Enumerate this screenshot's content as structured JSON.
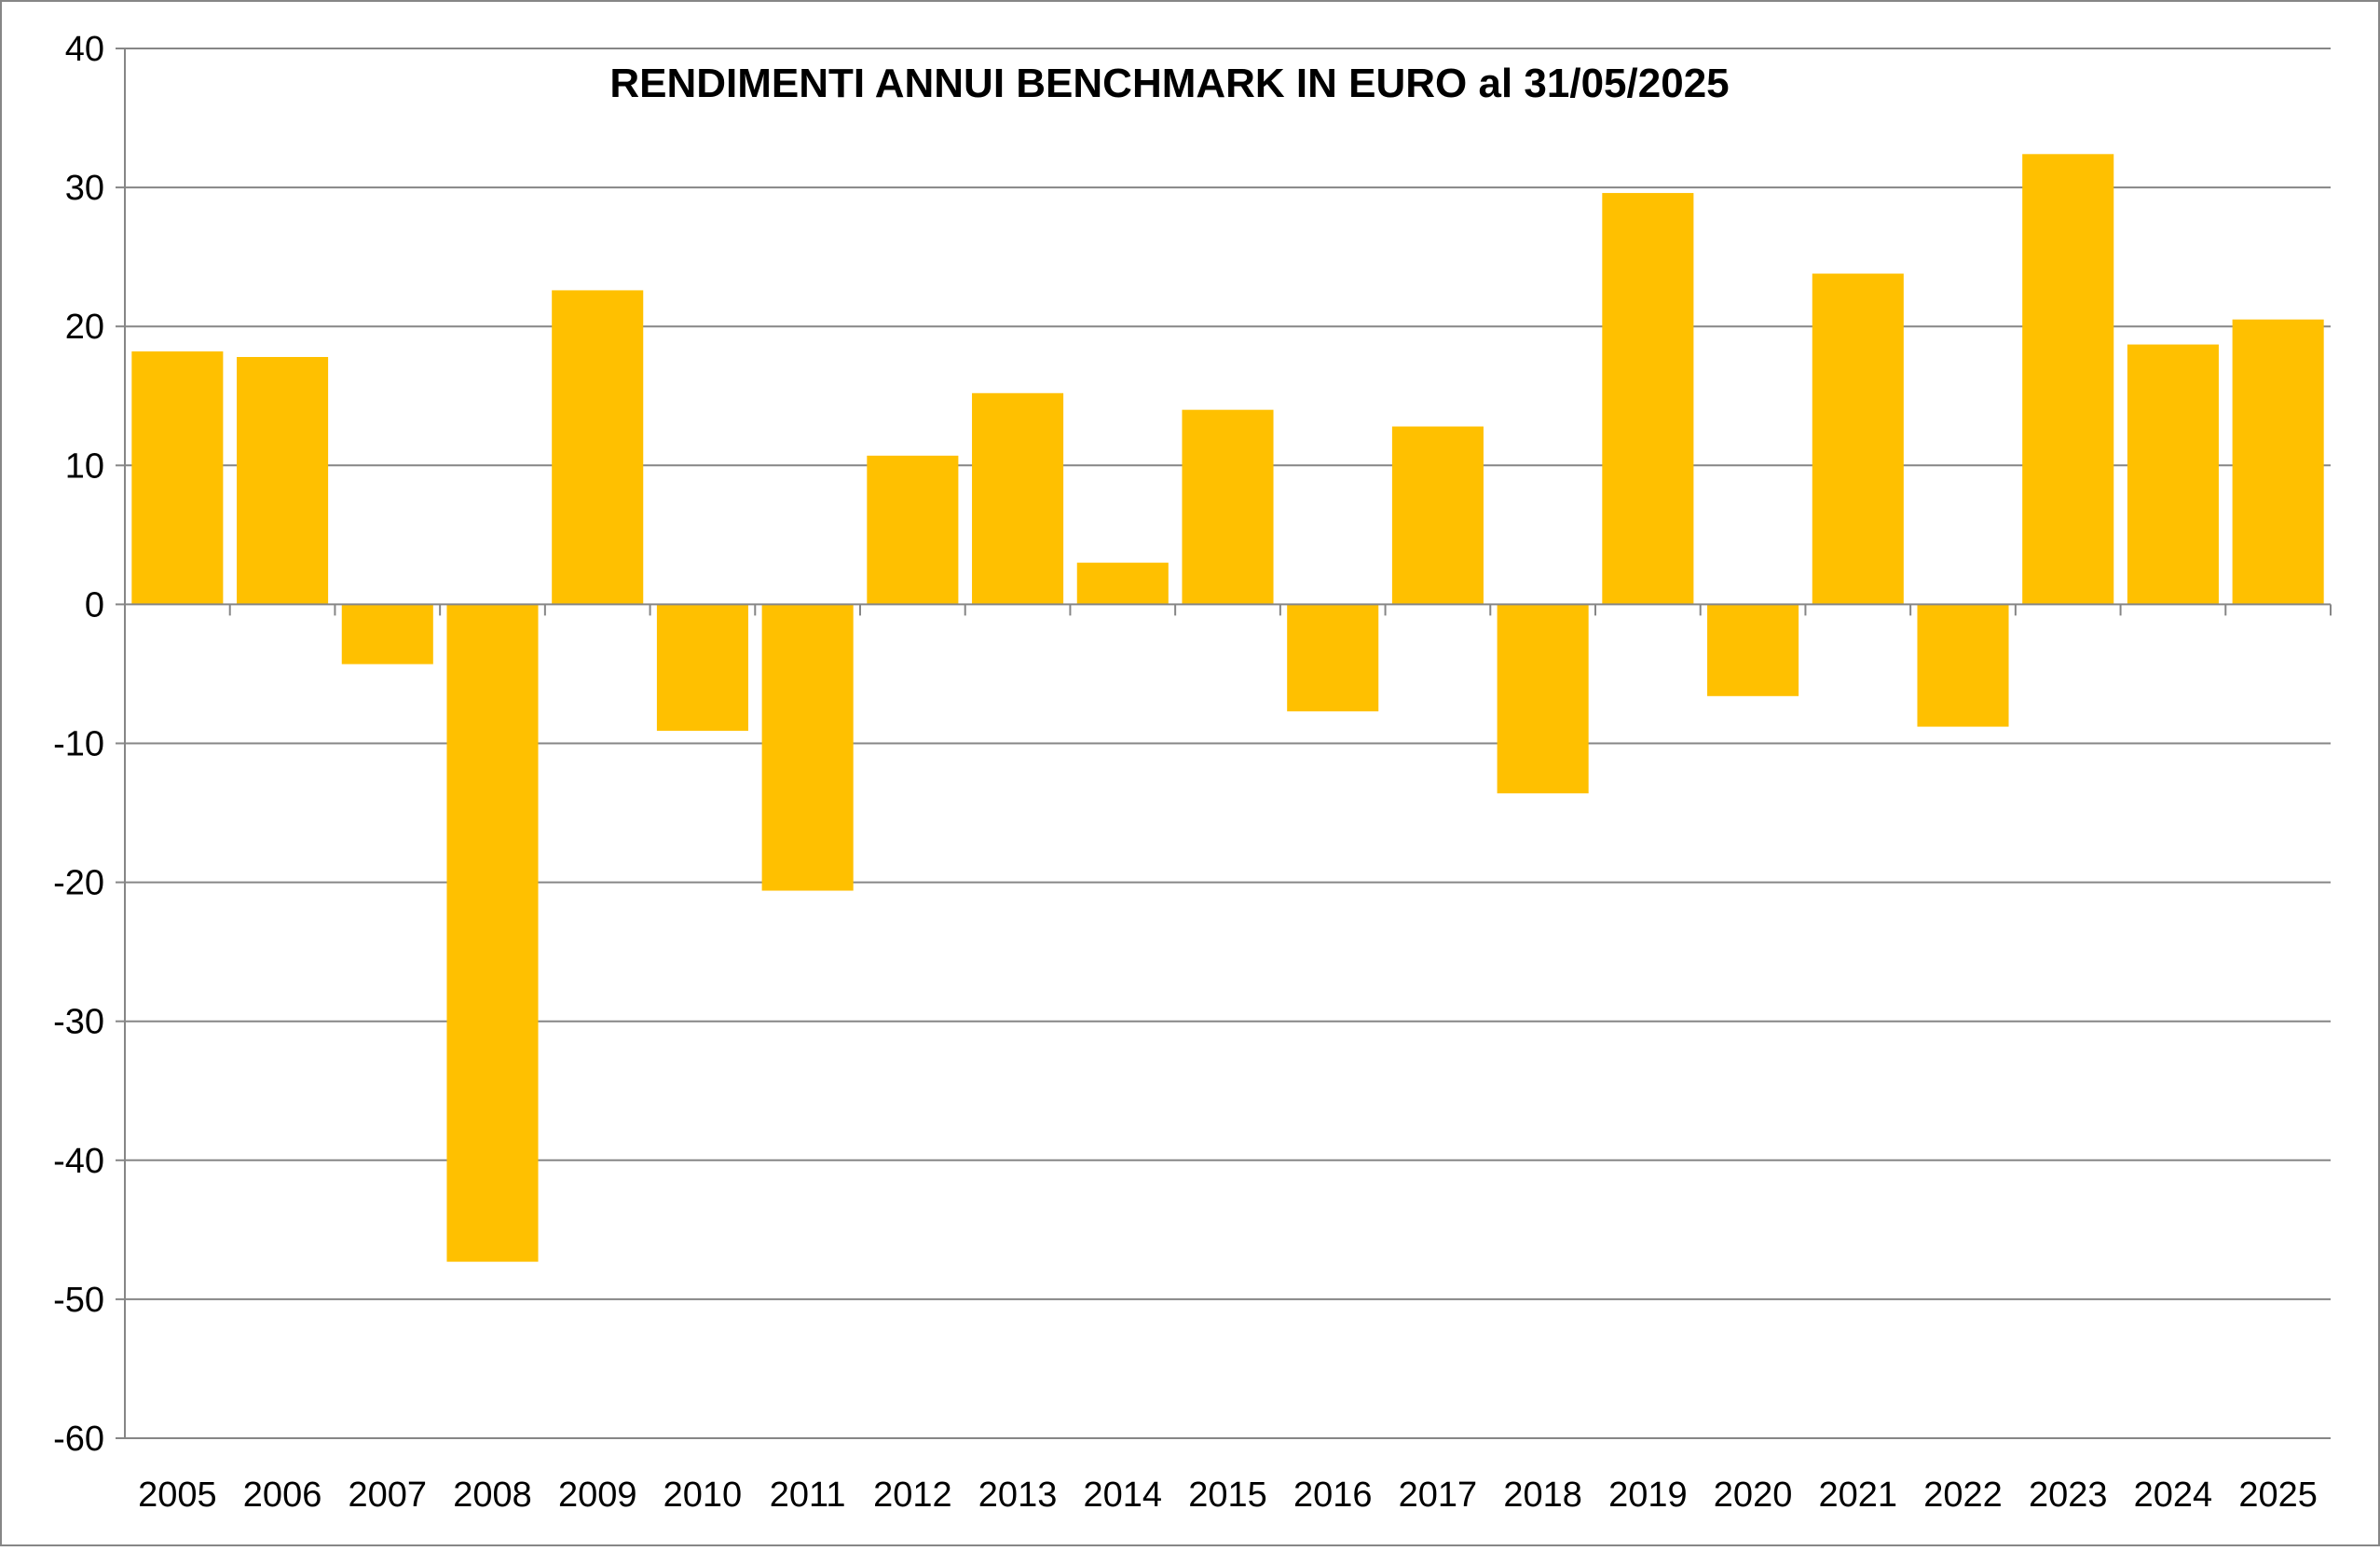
{
  "chart_data": {
    "type": "bar",
    "title": "RENDIMENTI ANNUI BENCHMARK IN EURO al 31/05/2025",
    "xlabel": "",
    "ylabel": "",
    "categories": [
      "2005",
      "2006",
      "2007",
      "2008",
      "2009",
      "2010",
      "2011",
      "2012",
      "2013",
      "2014",
      "2015",
      "2016",
      "2017",
      "2018",
      "2019",
      "2020",
      "2021",
      "2022",
      "2023",
      "2024",
      "2025"
    ],
    "values": [
      18.2,
      17.8,
      -4.3,
      -47.3,
      22.6,
      -9.1,
      -20.6,
      10.7,
      15.2,
      3.0,
      14.0,
      -7.7,
      12.8,
      -13.6,
      29.6,
      -6.6,
      23.8,
      -8.8,
      32.4,
      18.7,
      20.5
    ],
    "ylim": [
      -60,
      40
    ],
    "yticks": [
      "40",
      "30",
      "20",
      "10",
      "0",
      "-10",
      "-20",
      "-30",
      "-40",
      "-50",
      "-60"
    ],
    "grid": true,
    "legend": "none",
    "colors": {
      "bar": "#FFC000",
      "grid": "#868686",
      "axis": "#868686",
      "border": "#868686",
      "text": "#000000"
    }
  }
}
